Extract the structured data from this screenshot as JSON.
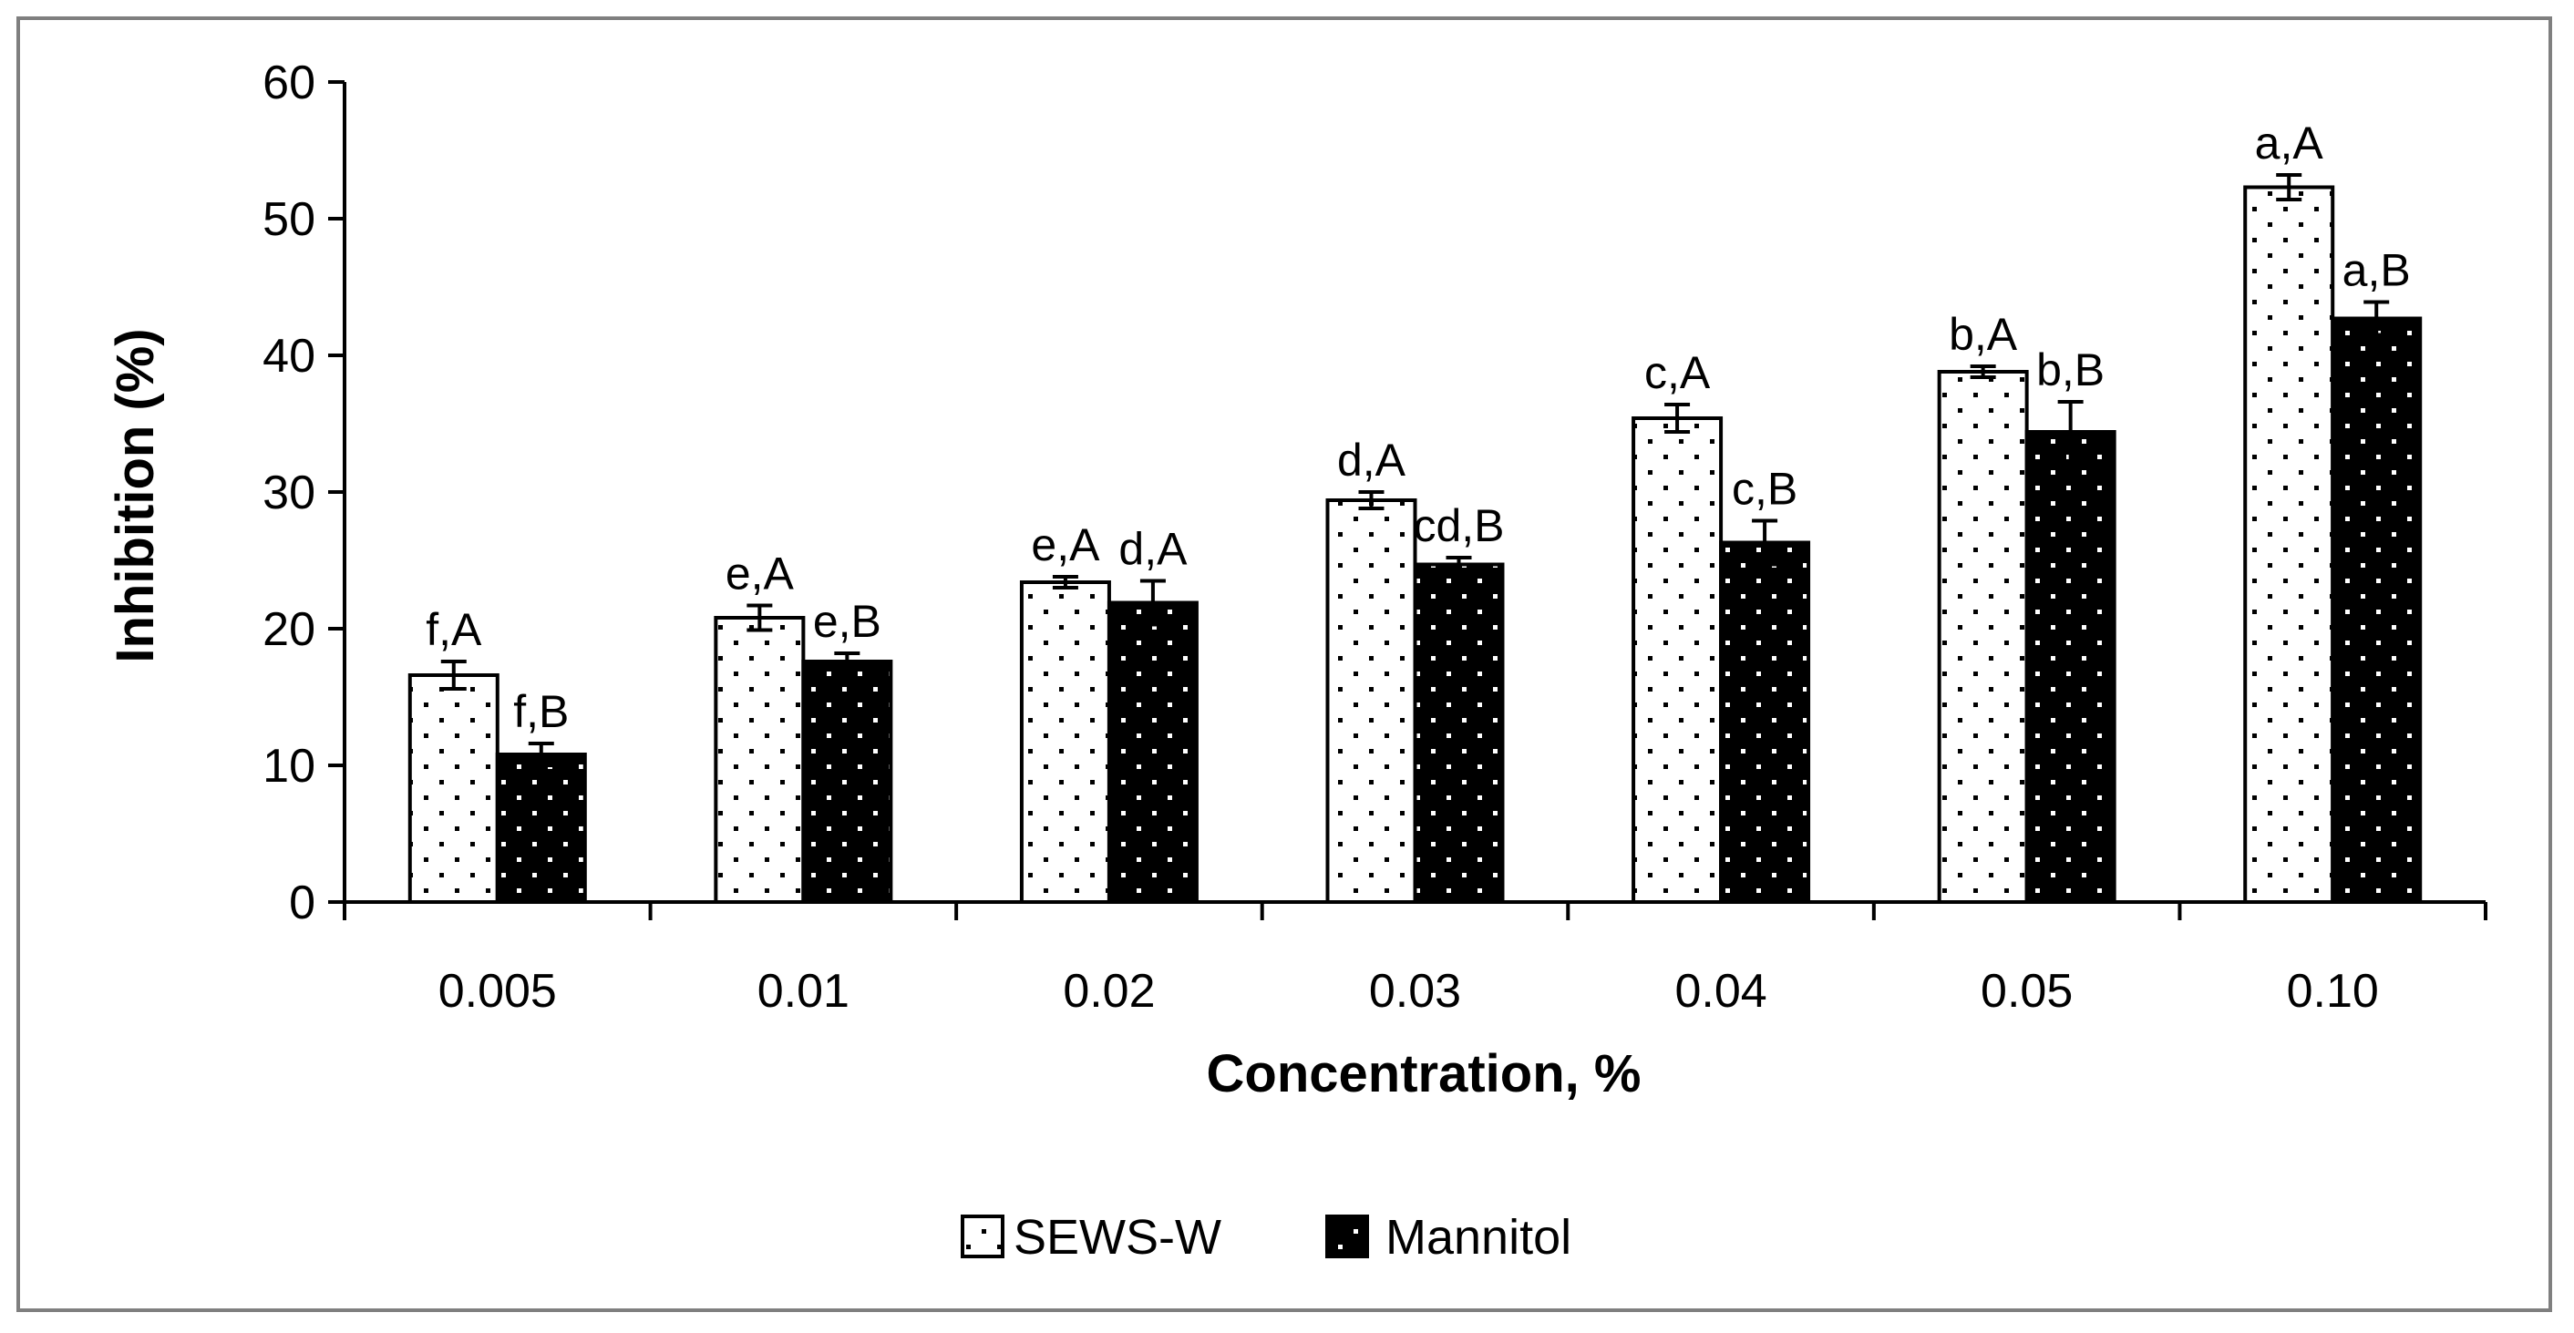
{
  "chart_data": {
    "type": "bar",
    "title": "",
    "xlabel": "Concentration, %",
    "ylabel": "Inhibition (%)",
    "ylim": [
      0,
      60
    ],
    "yticks": [
      "0",
      "10",
      "20",
      "30",
      "40",
      "50",
      "60"
    ],
    "grid": false,
    "legend_position": "bottom-center",
    "categories": [
      "0.005",
      "0.01",
      "0.02",
      "0.03",
      "0.04",
      "0.05",
      "0.10"
    ],
    "series": [
      {
        "name": "SEWS-W",
        "fill_color": "#ffffff",
        "dot_color": "#000000",
        "values": [
          16.6,
          20.8,
          23.4,
          29.4,
          35.4,
          38.8,
          52.3
        ],
        "errors": [
          1.0,
          0.9,
          0.4,
          0.6,
          1.0,
          0.4,
          0.9
        ],
        "labels": [
          "f,A",
          "e,A",
          "e,A",
          "d,A",
          "c,A",
          "b,A",
          "a,A"
        ]
      },
      {
        "name": "Mannitol",
        "fill_color": "#000000",
        "dot_color": "#ffffff",
        "values": [
          10.8,
          17.6,
          21.9,
          24.7,
          26.3,
          34.4,
          42.7
        ],
        "errors": [
          0.8,
          0.6,
          1.6,
          0.5,
          1.6,
          2.2,
          1.2
        ],
        "labels": [
          "f,B",
          "e,B",
          "d,A",
          "cd,B",
          "c,B",
          "b,B",
          "a,B"
        ]
      }
    ]
  }
}
